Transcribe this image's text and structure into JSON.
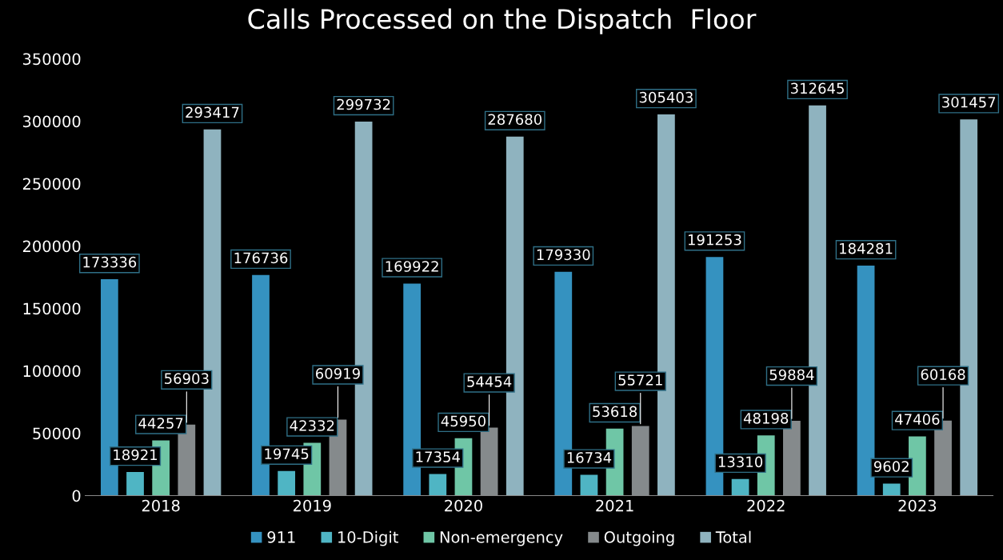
{
  "chart_data": {
    "type": "bar",
    "title": "Calls Processed on the Dispatch  Floor",
    "categories": [
      "2018",
      "2019",
      "2020",
      "2021",
      "2022",
      "2023"
    ],
    "series": [
      {
        "name": "911",
        "color": "#3592c0",
        "values": [
          173336,
          176736,
          169922,
          179330,
          191253,
          184281
        ]
      },
      {
        "name": "10-Digit",
        "color": "#4fb5c4",
        "values": [
          18921,
          19745,
          17354,
          16734,
          13310,
          9602
        ]
      },
      {
        "name": "Non-emergency",
        "color": "#6fc6a6",
        "values": [
          44257,
          42332,
          45950,
          53618,
          48198,
          47406
        ]
      },
      {
        "name": "Outgoing",
        "color": "#858a8c",
        "values": [
          56903,
          60919,
          54454,
          55721,
          59884,
          60168
        ]
      },
      {
        "name": "Total",
        "color": "#8fb3bf",
        "values": [
          293417,
          299732,
          287680,
          305403,
          312645,
          301457
        ]
      }
    ],
    "ylim": [
      0,
      350000
    ],
    "yticks": [
      0,
      50000,
      100000,
      150000,
      200000,
      250000,
      300000,
      350000
    ],
    "grid": false,
    "legend": "bottom",
    "data_labels": true
  }
}
